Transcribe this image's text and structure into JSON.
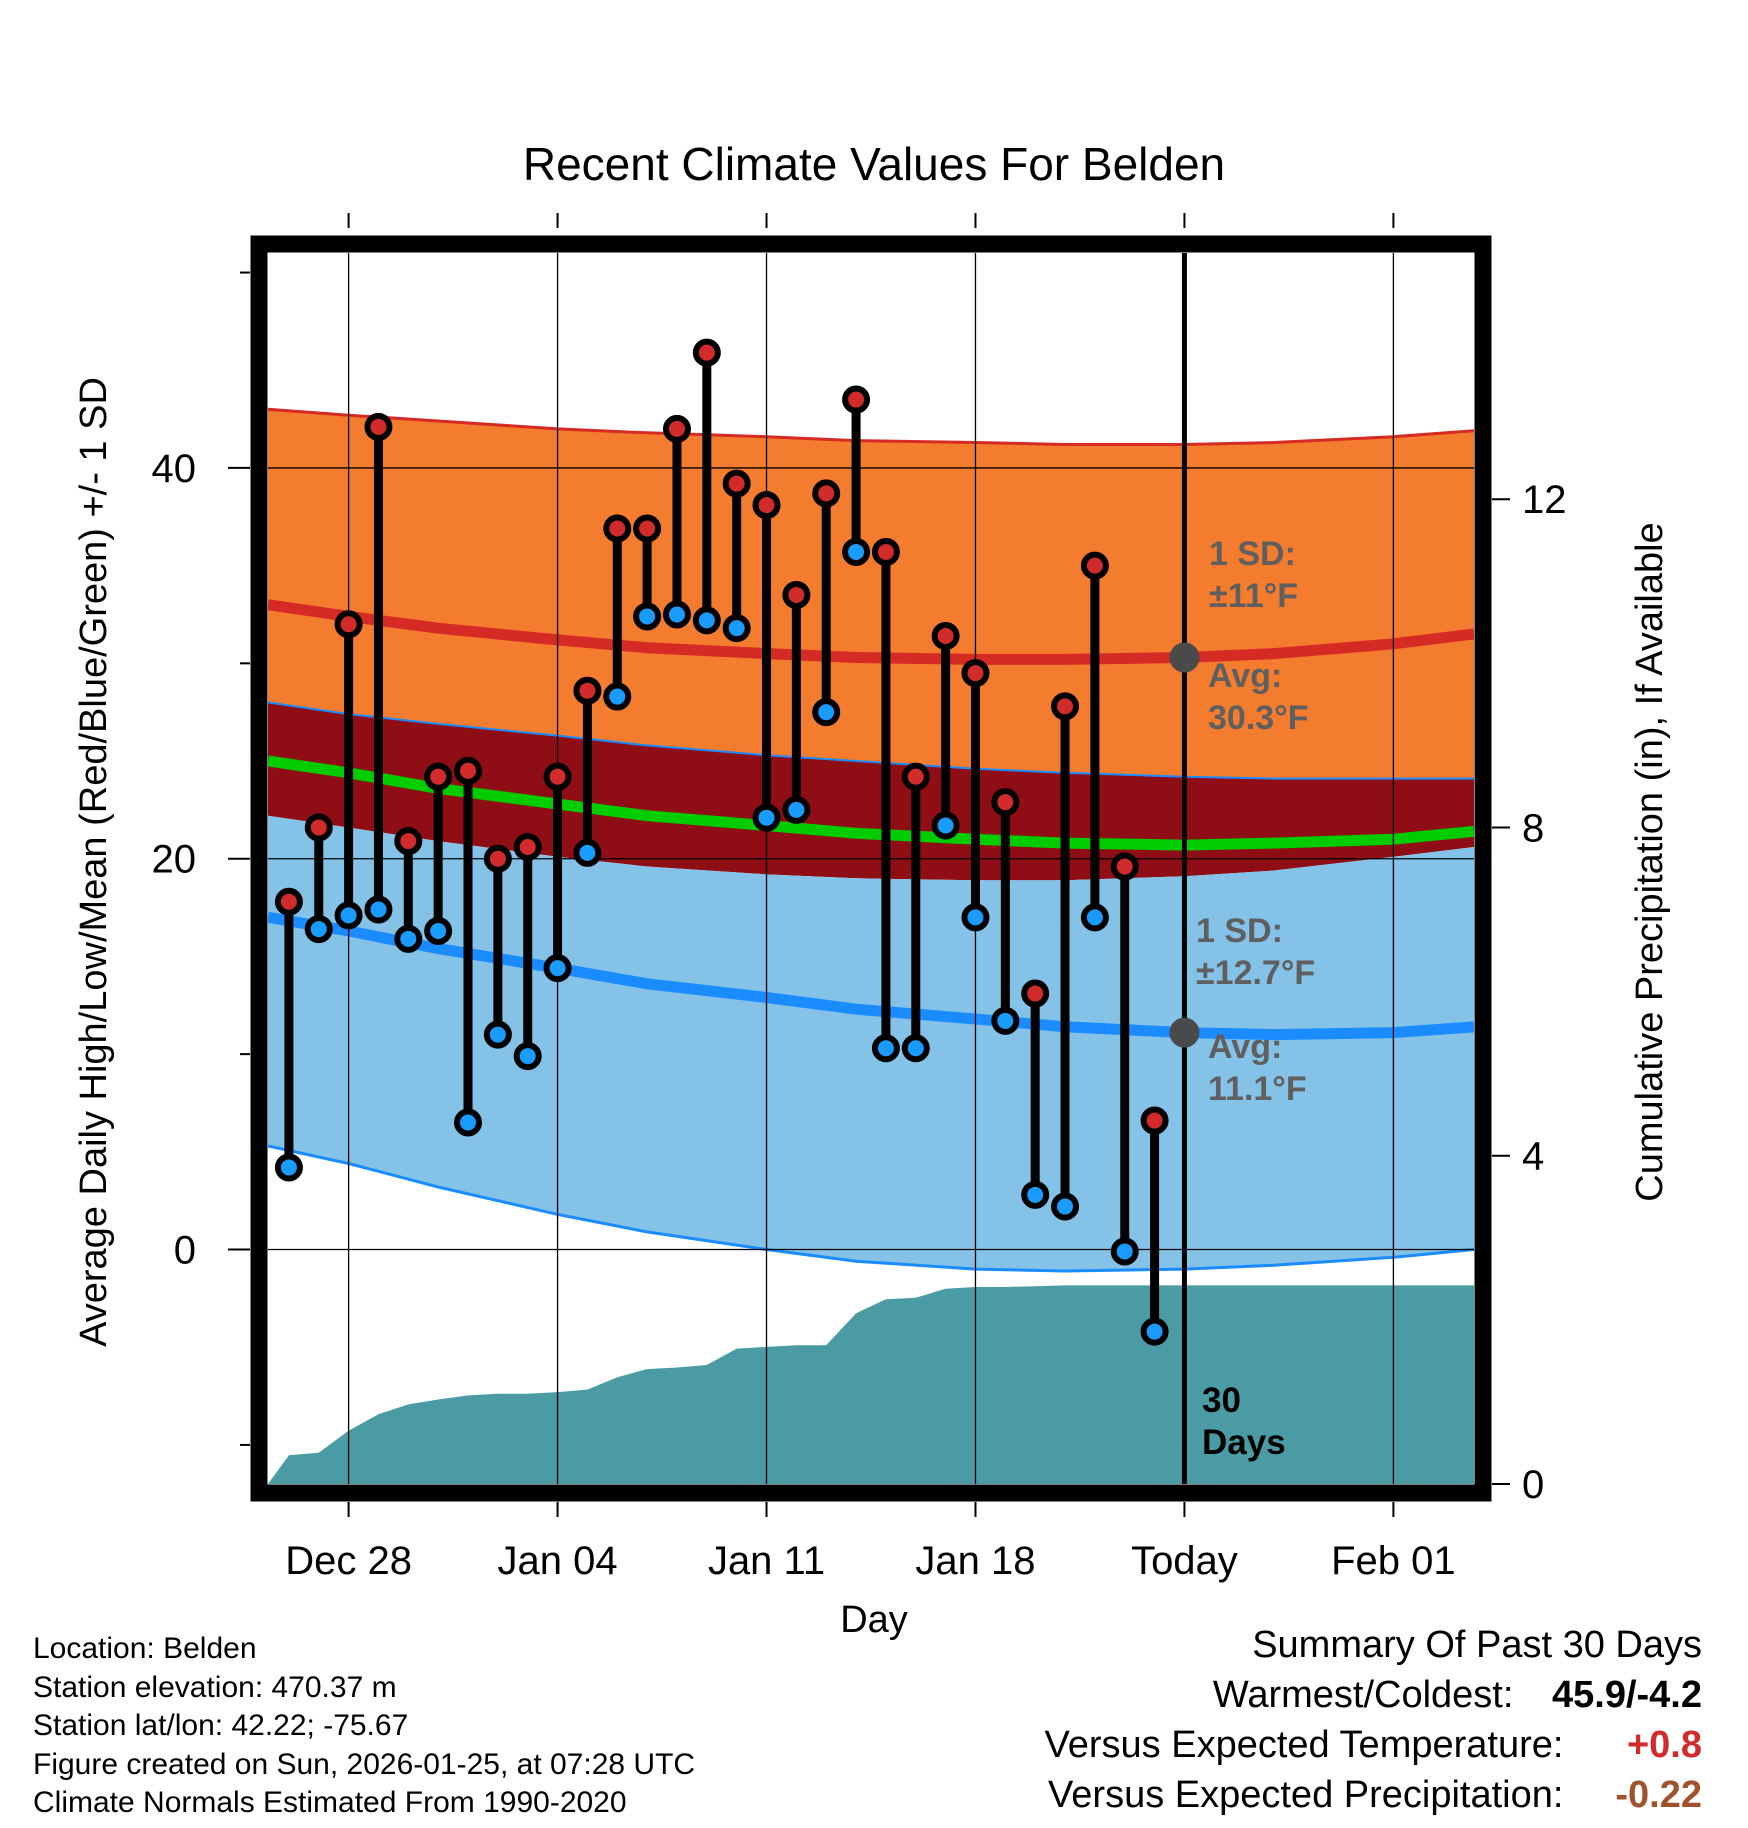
{
  "chart_data": {
    "type": "line",
    "title": "Recent Climate Values For Belden",
    "xlabel": "Day",
    "ylabel": "Average Daily High/Low/Mean (Red/Blue/Green) +/- 1 SD",
    "y2label": "Cumulative Precipitation (in), If Available",
    "x_tick_labels": [
      "Dec 28",
      "Jan 04",
      "Jan 11",
      "Jan 18",
      "Today",
      "Feb 01"
    ],
    "x_tick_days": [
      3,
      10,
      17,
      24,
      31,
      38
    ],
    "x_range_days": [
      0.3,
      40.7
    ],
    "today_day": 31,
    "ylim": [
      -12,
      51
    ],
    "y_ticks": [
      0,
      20,
      40
    ],
    "y_minor_ticks": [
      -10,
      10,
      30,
      50
    ],
    "y2lim": [
      0,
      15
    ],
    "y2_ticks": [
      0,
      4,
      8,
      12
    ],
    "days": [
      1,
      2,
      3,
      4,
      5,
      6,
      7,
      8,
      9,
      10,
      11,
      12,
      13,
      14,
      15,
      16,
      17,
      18,
      19,
      20,
      21,
      22,
      23,
      24,
      25,
      26,
      27,
      28,
      29,
      30
    ],
    "observed_high": [
      17.8,
      21.6,
      32.0,
      42.1,
      20.9,
      24.2,
      24.5,
      20.0,
      20.6,
      24.2,
      28.6,
      36.9,
      36.9,
      42.0,
      45.9,
      39.2,
      38.1,
      33.5,
      38.7,
      43.5,
      35.7,
      24.2,
      31.4,
      29.5,
      22.9,
      13.1,
      27.8,
      35.0,
      19.6,
      6.6
    ],
    "observed_low": [
      4.2,
      16.4,
      17.1,
      17.4,
      15.9,
      16.3,
      6.5,
      11.0,
      9.9,
      14.4,
      20.3,
      28.3,
      32.4,
      32.5,
      32.2,
      31.8,
      22.1,
      22.5,
      27.5,
      35.7,
      10.3,
      10.3,
      21.7,
      17.0,
      11.7,
      2.8,
      2.2,
      17.0,
      -0.1,
      -4.2
    ],
    "normal_x": [
      0.3,
      3,
      6,
      10,
      13,
      17,
      20,
      24,
      27,
      31,
      34,
      38,
      40.7
    ],
    "normal_high_mean": [
      33.0,
      32.4,
      31.8,
      31.2,
      30.8,
      30.5,
      30.3,
      30.2,
      30.2,
      30.3,
      30.5,
      31.0,
      31.5
    ],
    "normal_high_upper": [
      43.0,
      42.7,
      42.4,
      42.0,
      41.8,
      41.6,
      41.4,
      41.3,
      41.2,
      41.2,
      41.3,
      41.6,
      41.9
    ],
    "normal_high_lower": [
      28.0,
      27.4,
      26.9,
      26.3,
      25.8,
      25.3,
      25.0,
      24.6,
      24.4,
      24.2,
      24.1,
      24.1,
      24.1
    ],
    "normal_low_mean": [
      17.0,
      16.3,
      15.4,
      14.4,
      13.6,
      12.9,
      12.3,
      11.8,
      11.4,
      11.1,
      11.0,
      11.1,
      11.4
    ],
    "normal_low_upper": [
      22.2,
      21.6,
      20.9,
      20.1,
      19.6,
      19.2,
      19.0,
      18.9,
      18.9,
      19.1,
      19.4,
      20.1,
      20.6
    ],
    "normal_low_lower": [
      5.3,
      4.4,
      3.2,
      1.8,
      0.9,
      0.0,
      -0.6,
      -1.0,
      -1.1,
      -1.0,
      -0.8,
      -0.4,
      0.0
    ],
    "normal_mean": [
      25.0,
      24.4,
      23.6,
      22.8,
      22.2,
      21.7,
      21.3,
      21.0,
      20.8,
      20.7,
      20.8,
      21.0,
      21.4
    ],
    "precip_x": [
      0.3,
      1,
      2,
      3,
      4,
      5,
      6,
      7,
      8,
      9,
      10,
      11,
      12,
      13,
      14,
      15,
      16,
      17,
      18,
      19,
      20,
      21,
      22,
      23,
      24,
      25,
      26,
      27,
      28,
      29,
      30,
      31,
      40.7
    ],
    "precip_cum": [
      0.0,
      0.35,
      0.38,
      0.65,
      0.85,
      0.97,
      1.03,
      1.08,
      1.1,
      1.1,
      1.12,
      1.15,
      1.3,
      1.4,
      1.42,
      1.45,
      1.65,
      1.67,
      1.69,
      1.69,
      2.08,
      2.25,
      2.27,
      2.38,
      2.4,
      2.4,
      2.41,
      2.42,
      2.42,
      2.42,
      2.42,
      2.42,
      2.42
    ]
  },
  "annotations": {
    "high_sd_label": "1 SD:",
    "high_sd_value": "±11°F",
    "high_avg_label": "Avg:",
    "high_avg_value": "30.3°F",
    "low_sd_label": "1 SD:",
    "low_sd_value": "±12.7°F",
    "low_avg_label": "Avg:",
    "low_avg_value": "11.1°F",
    "days_count": "30",
    "days_word": "Days"
  },
  "footer": {
    "location": "Location: Belden",
    "elevation": "Station elevation: 470.37 m",
    "latlon": "Station lat/lon: 42.22; -75.67",
    "created": "Figure created on Sun, 2026-01-25, at 07:28 UTC",
    "normals": "Climate Normals Estimated From 1990-2020"
  },
  "summary": {
    "title": "Summary Of Past 30 Days",
    "warmest_label": "Warmest/Coldest:",
    "warmest_value": "45.9/-4.2",
    "temp_label": "Versus Expected Temperature:",
    "temp_value": "+0.8",
    "precip_label": "Versus Expected Precipitation:",
    "precip_value": "-0.22"
  },
  "colors": {
    "high_band": "#f47c2e",
    "high_line": "#d62a25",
    "overlap_band": "#8f0d14",
    "low_band": "#84c2e8",
    "low_line": "#1a8cff",
    "mean_line": "#00cc00",
    "precip_fill": "#4a9ba3",
    "high_marker": "#d12b2b",
    "low_marker": "#1a9cff",
    "annotation_text": "#5f5f5f",
    "temp_anomaly": "#d12b2b",
    "precip_anomaly": "#a0522d"
  }
}
